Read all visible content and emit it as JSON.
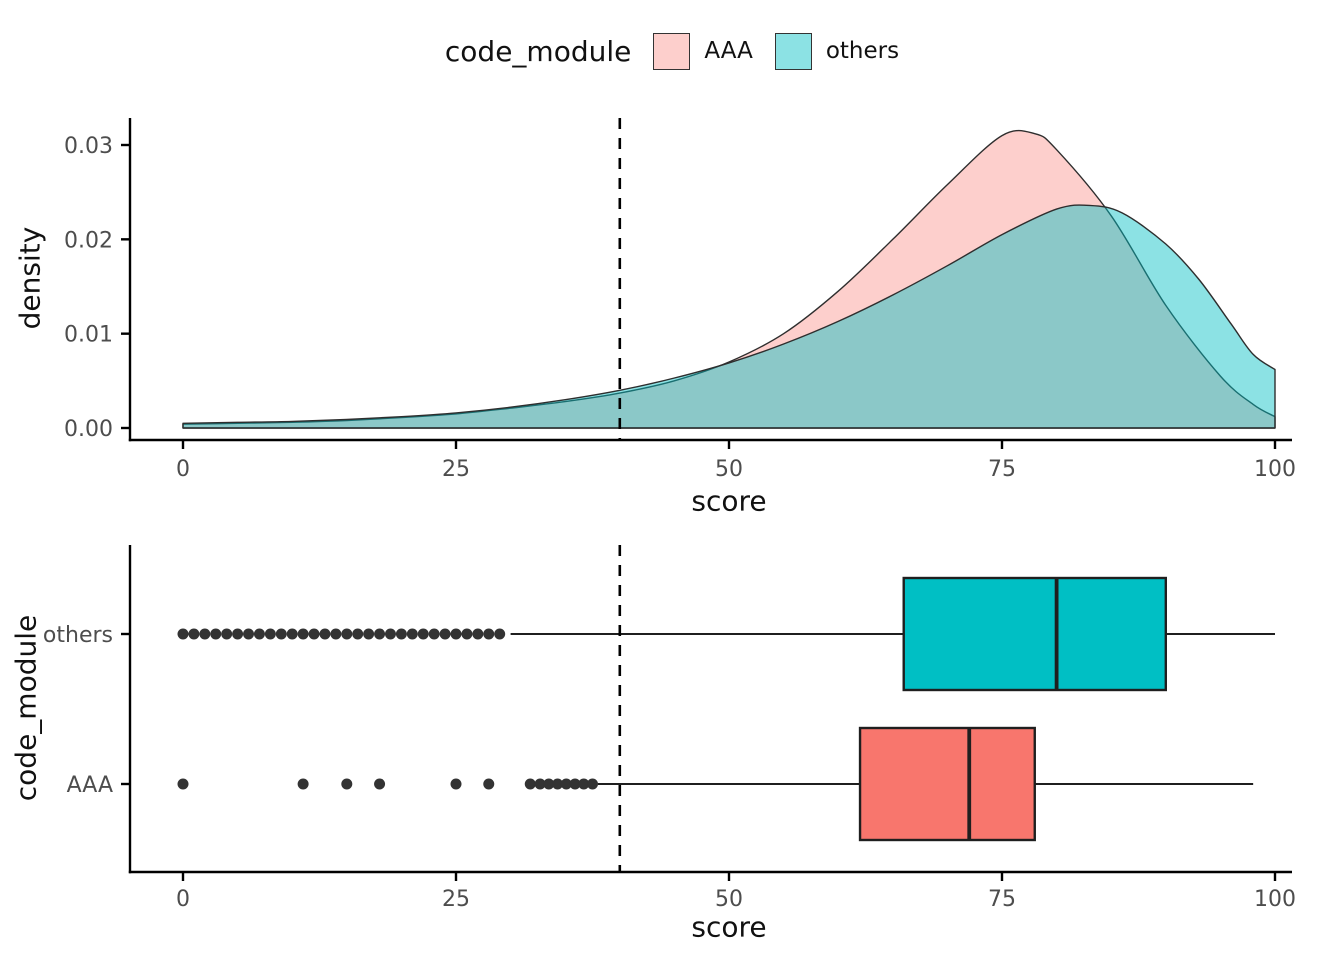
{
  "legend": {
    "title": "code_module",
    "items": [
      {
        "label": "AAA",
        "fill": "#F8766D",
        "fill_opacity": 0.35
      },
      {
        "label": "others",
        "fill": "#00BFC4",
        "fill_opacity": 0.45
      }
    ]
  },
  "chart_data": [
    {
      "type": "area",
      "title": "",
      "xlabel": "score",
      "ylabel": "density",
      "xlim": [
        0,
        100
      ],
      "ylim": [
        0,
        0.032
      ],
      "x_ticks": [
        0,
        25,
        50,
        75,
        100
      ],
      "x_tick_labels": [
        "0",
        "25",
        "50",
        "75",
        "100"
      ],
      "y_ticks": [
        0,
        0.01,
        0.02,
        0.03
      ],
      "y_tick_labels": [
        "0.00",
        "0.01",
        "0.02",
        "0.03"
      ],
      "grid": "off",
      "legend_position": "top",
      "vline": {
        "x": 40,
        "style": "dashed",
        "color": "#000000"
      },
      "series": [
        {
          "name": "AAA",
          "fill": "#F8766D",
          "fill_opacity": 0.35,
          "points": [
            [
              0,
              0.0004
            ],
            [
              5,
              0.0005
            ],
            [
              10,
              0.0006
            ],
            [
              15,
              0.0008
            ],
            [
              20,
              0.0011
            ],
            [
              25,
              0.0015
            ],
            [
              30,
              0.0021
            ],
            [
              35,
              0.0028
            ],
            [
              40,
              0.0037
            ],
            [
              45,
              0.005
            ],
            [
              50,
              0.007
            ],
            [
              55,
              0.01
            ],
            [
              60,
              0.0145
            ],
            [
              65,
              0.02
            ],
            [
              70,
              0.0258
            ],
            [
              75,
              0.031
            ],
            [
              78,
              0.0312
            ],
            [
              80,
              0.0295
            ],
            [
              85,
              0.0225
            ],
            [
              90,
              0.013
            ],
            [
              95,
              0.0055
            ],
            [
              98,
              0.0025
            ],
            [
              100,
              0.0012
            ]
          ]
        },
        {
          "name": "others",
          "fill": "#00BFC4",
          "fill_opacity": 0.45,
          "right_edge_drop": true,
          "points": [
            [
              0,
              0.0005
            ],
            [
              5,
              0.0006
            ],
            [
              10,
              0.0007
            ],
            [
              15,
              0.0009
            ],
            [
              20,
              0.0012
            ],
            [
              25,
              0.0016
            ],
            [
              30,
              0.0022
            ],
            [
              35,
              0.003
            ],
            [
              40,
              0.004
            ],
            [
              45,
              0.0053
            ],
            [
              50,
              0.0069
            ],
            [
              55,
              0.0089
            ],
            [
              60,
              0.0113
            ],
            [
              65,
              0.0141
            ],
            [
              70,
              0.0172
            ],
            [
              75,
              0.0205
            ],
            [
              80,
              0.0232
            ],
            [
              83,
              0.0236
            ],
            [
              86,
              0.0228
            ],
            [
              90,
              0.0195
            ],
            [
              93,
              0.0158
            ],
            [
              96,
              0.011
            ],
            [
              98,
              0.0078
            ],
            [
              100,
              0.0062
            ]
          ]
        }
      ]
    },
    {
      "type": "boxplot",
      "title": "",
      "xlabel": "score",
      "ylabel": "code_module",
      "xlim": [
        0,
        100
      ],
      "x_ticks": [
        0,
        25,
        50,
        75,
        100
      ],
      "x_tick_labels": [
        "0",
        "25",
        "50",
        "75",
        "100"
      ],
      "categories": [
        "others",
        "AAA"
      ],
      "grid": "off",
      "vline": {
        "x": 40,
        "style": "dashed",
        "color": "#000000"
      },
      "boxes": [
        {
          "category": "others",
          "fill": "#00BFC4",
          "whisker_min": 30,
          "q1": 66,
          "median": 80,
          "q3": 90,
          "whisker_max": 100,
          "outliers": [
            0,
            1,
            2,
            3,
            4,
            5,
            6,
            7,
            8,
            9,
            10,
            11,
            12,
            13,
            14,
            15,
            16,
            17,
            18,
            19,
            20,
            21,
            22,
            23,
            24,
            25,
            26,
            27,
            28,
            29
          ]
        },
        {
          "category": "AAA",
          "fill": "#F8766D",
          "whisker_min": 38,
          "q1": 62,
          "median": 72,
          "q3": 78,
          "whisker_max": 98,
          "outliers": [
            0,
            11,
            15,
            18,
            25,
            28,
            31.8,
            32.7,
            33.5,
            34.3,
            35.1,
            35.9,
            36.7,
            37.5
          ]
        }
      ]
    }
  ],
  "style": {
    "axis_color": "#000000",
    "tick_label_color": "#4d4d4d",
    "outline_color": "#2e2e2e",
    "outlier_color": "#333333",
    "box_stroke_color": "#1f1f1f"
  }
}
